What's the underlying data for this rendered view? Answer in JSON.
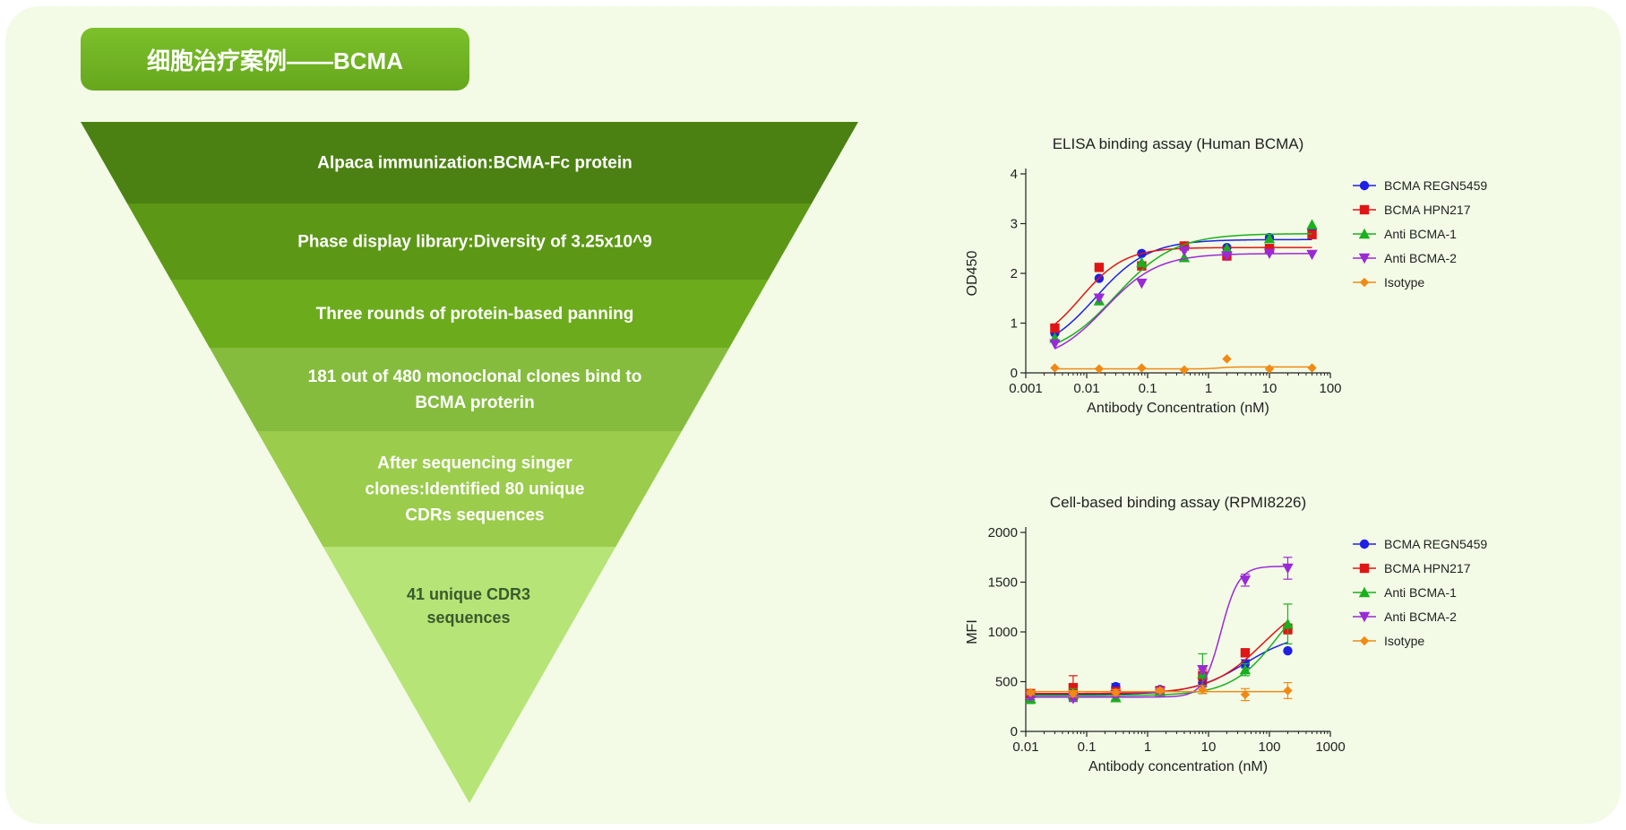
{
  "header": {
    "title": "细胞治疗案例——BCMA"
  },
  "funnel": {
    "steps": [
      {
        "lines": [
          "Alpaca immunization:BCMA-Fc protein"
        ],
        "color": "#4b8112"
      },
      {
        "lines": [
          "Phase display library:Diversity of 3.25x10^9"
        ],
        "color": "#5c9716"
      },
      {
        "lines": [
          "Three rounds of protein-based panning"
        ],
        "color": "#6cac1c"
      },
      {
        "lines": [
          "181 out of 480 monoclonal clones bind to",
          "BCMA proterin"
        ],
        "color": "#85bc3e"
      },
      {
        "lines": [
          "After sequencing singer",
          "clones:Identified 80 unique",
          "CDRs sequences"
        ],
        "color": "#9bcc4c"
      },
      {
        "lines": [
          "41 unique CDR3",
          "sequences"
        ],
        "color": "#b6e476"
      }
    ]
  },
  "chart_data": [
    {
      "type": "line",
      "title": "ELISA binding assay (Human BCMA)",
      "xlabel": "Antibody Concentration (nM)",
      "ylabel": "OD450",
      "xscale": "log",
      "xlim": [
        0.001,
        100
      ],
      "ylim": [
        0,
        4
      ],
      "xticks": [
        0.001,
        0.01,
        0.1,
        1,
        10,
        100
      ],
      "xtick_labels": [
        "0.001",
        "0.01",
        "0.1",
        "1",
        "10",
        "100"
      ],
      "yticks": [
        0,
        1,
        2,
        3,
        4
      ],
      "ytick_labels": [
        "0",
        "1",
        "2",
        "3",
        "4"
      ],
      "legend_position": "right",
      "x": [
        0.003,
        0.016,
        0.08,
        0.4,
        2,
        10,
        50
      ],
      "series": [
        {
          "name": "BCMA REGN5459",
          "color": "#1f1fe6",
          "marker": "circle",
          "values": [
            0.8,
            1.9,
            2.4,
            2.55,
            2.52,
            2.72,
            2.88
          ],
          "fit": {
            "bottom": 0.35,
            "top": 2.68,
            "ec50": 0.014,
            "hill": 1.0
          }
        },
        {
          "name": "BCMA HPN217",
          "color": "#e01515",
          "marker": "square",
          "values": [
            0.9,
            2.12,
            2.15,
            2.55,
            2.35,
            2.5,
            2.78
          ],
          "fit": {
            "bottom": 0.5,
            "top": 2.52,
            "ec50": 0.008,
            "hill": 1.2
          }
        },
        {
          "name": "Anti BCMA-1",
          "color": "#19b01e",
          "marker": "triangle-up",
          "values": [
            0.7,
            1.45,
            2.22,
            2.32,
            2.5,
            2.7,
            2.98
          ],
          "fit": {
            "bottom": 0.3,
            "top": 2.8,
            "ec50": 0.03,
            "hill": 0.9
          }
        },
        {
          "name": "Anti BCMA-2",
          "color": "#9a2ad6",
          "marker": "triangle-down",
          "values": [
            0.58,
            1.5,
            1.8,
            2.45,
            2.35,
            2.4,
            2.38
          ],
          "fit": {
            "bottom": 0.2,
            "top": 2.4,
            "ec50": 0.02,
            "hill": 1.0
          }
        },
        {
          "name": "Isotype",
          "color": "#f08a14",
          "marker": "diamond",
          "values": [
            0.1,
            0.08,
            0.1,
            0.06,
            0.28,
            0.08,
            0.1
          ],
          "fit": {
            "bottom": 0.08,
            "top": 0.12,
            "ec50": 1.5,
            "hill": 4
          }
        }
      ]
    },
    {
      "type": "line",
      "title": "Cell-based binding assay (RPMI8226)",
      "xlabel": "Antibody concentration (nM)",
      "ylabel": "MFI",
      "xscale": "log",
      "xlim": [
        0.01,
        1000
      ],
      "ylim": [
        0,
        2000
      ],
      "xticks": [
        0.01,
        0.1,
        1,
        10,
        100,
        1000
      ],
      "xtick_labels": [
        "0.01",
        "0.1",
        "1",
        "10",
        "100",
        "1000"
      ],
      "yticks": [
        0,
        500,
        1000,
        1500,
        2000
      ],
      "ytick_labels": [
        "0",
        "500",
        "1000",
        "1500",
        "2000"
      ],
      "legend_position": "right",
      "x": [
        0.012,
        0.06,
        0.3,
        1.6,
        8,
        40,
        200
      ],
      "series": [
        {
          "name": "BCMA REGN5459",
          "color": "#1f1fe6",
          "marker": "circle",
          "values": [
            360,
            380,
            450,
            420,
            490,
            680,
            810
          ],
          "errors": [
            0,
            30,
            30,
            20,
            40,
            40,
            0
          ],
          "fit": {
            "bottom": 370,
            "top": 1000,
            "ec50": 40,
            "hill": 1.0
          }
        },
        {
          "name": "BCMA HPN217",
          "color": "#e01515",
          "marker": "square",
          "values": [
            380,
            440,
            400,
            410,
            560,
            790,
            1030
          ],
          "errors": [
            20,
            120,
            20,
            20,
            60,
            40,
            50
          ],
          "fit": {
            "bottom": 380,
            "top": 1400,
            "ec50": 80,
            "hill": 1.0
          }
        },
        {
          "name": "Anti BCMA-1",
          "color": "#19b01e",
          "marker": "triangle-up",
          "values": [
            330,
            370,
            340,
            400,
            580,
            620,
            1080
          ],
          "errors": [
            50,
            60,
            20,
            30,
            200,
            60,
            200
          ],
          "fit": {
            "bottom": 360,
            "top": 1600,
            "ec50": 150,
            "hill": 1.1
          }
        },
        {
          "name": "Anti BCMA-2",
          "color": "#9a2ad6",
          "marker": "triangle-down",
          "values": [
            350,
            330,
            370,
            400,
            620,
            1520,
            1640
          ],
          "errors": [
            30,
            30,
            20,
            20,
            40,
            60,
            110
          ],
          "fit": {
            "bottom": 345,
            "top": 1660,
            "ec50": 16,
            "hill": 3.0
          }
        },
        {
          "name": "Isotype",
          "color": "#f08a14",
          "marker": "diamond",
          "values": [
            390,
            380,
            390,
            410,
            420,
            370,
            410
          ],
          "errors": [
            20,
            30,
            30,
            20,
            40,
            60,
            80
          ],
          "fit": {
            "bottom": 400,
            "top": 400,
            "ec50": 1,
            "hill": 1
          }
        }
      ]
    }
  ]
}
